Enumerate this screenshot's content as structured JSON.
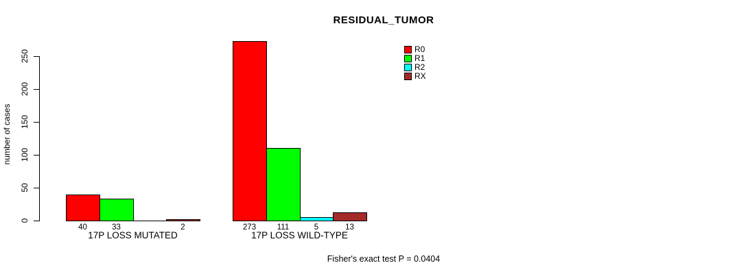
{
  "figure": {
    "title": "RESIDUAL_TUMOR",
    "ylabel": "number of cases",
    "annotation": "Fisher's exact test P = 0.0404"
  },
  "chart_data": {
    "type": "bar",
    "title": "RESIDUAL_TUMOR",
    "xlabel": "",
    "ylabel": "number of cases",
    "ylim": [
      0,
      250
    ],
    "yticks": [
      0,
      50,
      100,
      150,
      200,
      250
    ],
    "grid": false,
    "legend_position": "top-right",
    "categories": [
      "17P LOSS MUTATED",
      "17P LOSS WILD-TYPE"
    ],
    "series": [
      {
        "name": "R0",
        "color": "#ff0000",
        "values": [
          40,
          273
        ]
      },
      {
        "name": "R1",
        "color": "#00ff00",
        "values": [
          33,
          111
        ]
      },
      {
        "name": "R2",
        "color": "#00ffff",
        "values": [
          0,
          5
        ]
      },
      {
        "name": "RX",
        "color": "#a52a2a",
        "values": [
          2,
          13
        ]
      }
    ],
    "bar_value_labels": [
      [
        "40",
        "33",
        "",
        "2"
      ],
      [
        "273",
        "111",
        "5",
        "13"
      ]
    ],
    "legend": [
      {
        "label": "R0",
        "color": "#ff0000"
      },
      {
        "label": "R1",
        "color": "#00ff00"
      },
      {
        "label": "R2",
        "color": "#00ffff"
      },
      {
        "label": "RX",
        "color": "#a52a2a"
      }
    ],
    "annotation": "Fisher's exact test P = 0.0404"
  }
}
